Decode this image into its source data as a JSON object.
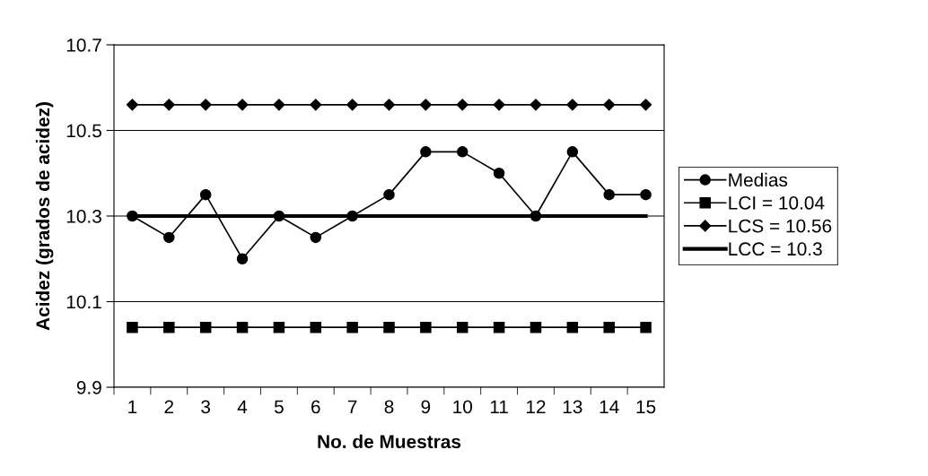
{
  "chart_data": {
    "type": "line",
    "xlabel": "No. de Muestras",
    "ylabel": "Acidez (grados de acidez)",
    "categories": [
      "1",
      "2",
      "3",
      "4",
      "5",
      "6",
      "7",
      "8",
      "9",
      "10",
      "11",
      "12",
      "13",
      "14",
      "15"
    ],
    "ylim": [
      9.9,
      10.7
    ],
    "yticks": [
      9.9,
      10.1,
      10.3,
      10.5,
      10.7
    ],
    "grid": "y",
    "legend": "right",
    "series": [
      {
        "name": "Medias",
        "color": "#000000",
        "marker": "circle",
        "values": [
          10.3,
          10.25,
          10.35,
          10.2,
          10.3,
          10.25,
          10.3,
          10.35,
          10.45,
          10.45,
          10.4,
          10.3,
          10.45,
          10.35,
          10.35
        ]
      },
      {
        "name": "LCI = 10.04",
        "color": "#000000",
        "marker": "square",
        "values": [
          10.04,
          10.04,
          10.04,
          10.04,
          10.04,
          10.04,
          10.04,
          10.04,
          10.04,
          10.04,
          10.04,
          10.04,
          10.04,
          10.04,
          10.04
        ]
      },
      {
        "name": "LCS = 10.56",
        "color": "#000000",
        "marker": "diamond",
        "values": [
          10.56,
          10.56,
          10.56,
          10.56,
          10.56,
          10.56,
          10.56,
          10.56,
          10.56,
          10.56,
          10.56,
          10.56,
          10.56,
          10.56,
          10.56
        ]
      },
      {
        "name": "LCC = 10.3",
        "color": "#000000",
        "marker": "none",
        "values": [
          10.3,
          10.3,
          10.3,
          10.3,
          10.3,
          10.3,
          10.3,
          10.3,
          10.3,
          10.3,
          10.3,
          10.3,
          10.3,
          10.3,
          10.3
        ]
      }
    ]
  }
}
